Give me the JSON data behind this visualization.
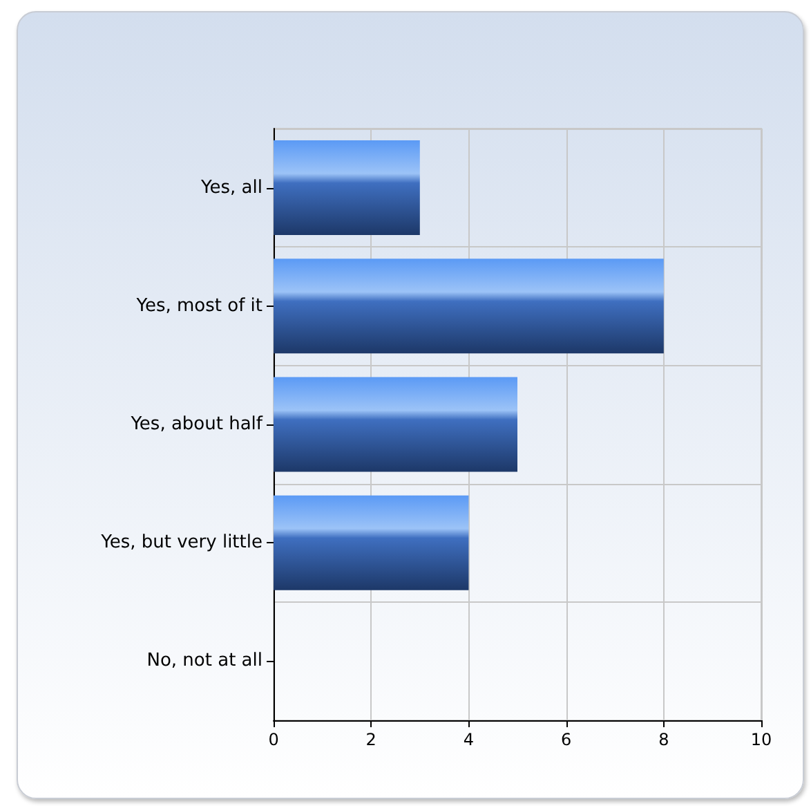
{
  "chart_data": {
    "type": "bar",
    "orientation": "horizontal",
    "categories": [
      "Yes, all",
      "Yes, most of it",
      "Yes, about half",
      "Yes, but very little",
      "No, not at all"
    ],
    "values": [
      3,
      8,
      5,
      4,
      0
    ],
    "color": "#3f6fc0",
    "xlim": [
      0,
      10
    ],
    "xticks": [
      0,
      2,
      4,
      6,
      8,
      10
    ],
    "grid": true
  }
}
